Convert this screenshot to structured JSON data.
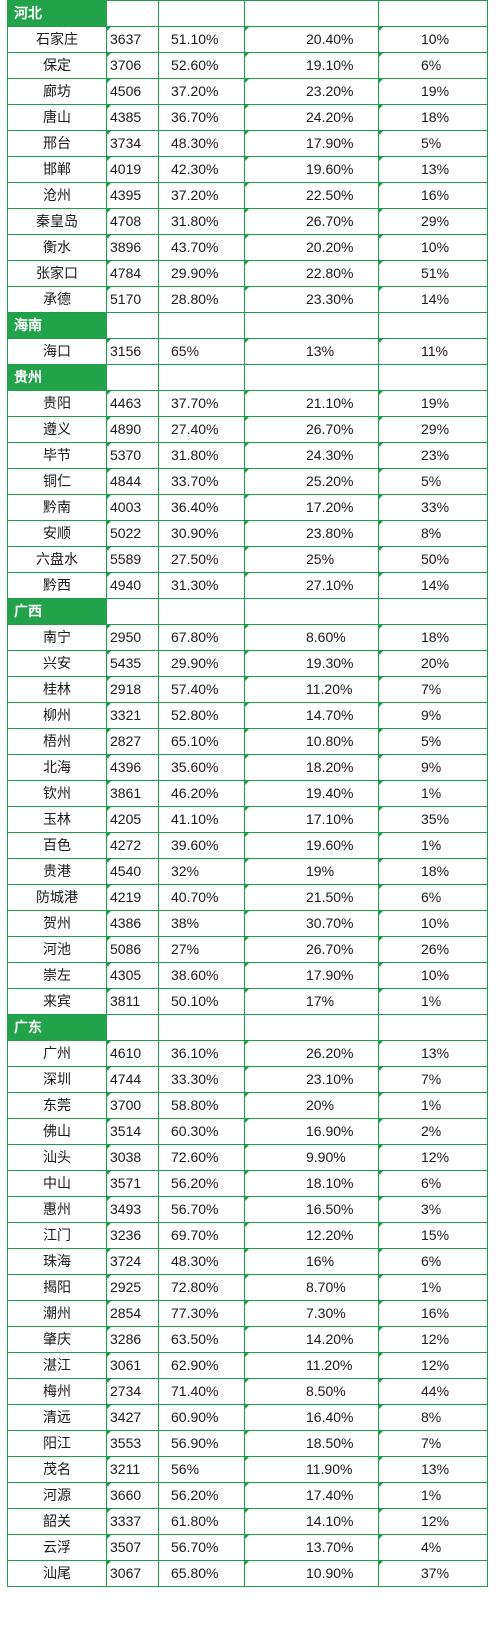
{
  "theme": {
    "accent": "#22a24a",
    "border": "#1e9e4a",
    "header_text": "#ffffff"
  },
  "provinces": [
    {
      "name": "河北",
      "rows": [
        [
          "石家庄",
          "3637",
          "51.10%",
          "20.40%",
          "10%"
        ],
        [
          "保定",
          "3706",
          "52.60%",
          "19.10%",
          "6%"
        ],
        [
          "廊坊",
          "4506",
          "37.20%",
          "23.20%",
          "19%"
        ],
        [
          "唐山",
          "4385",
          "36.70%",
          "24.20%",
          "18%"
        ],
        [
          "邢台",
          "3734",
          "48.30%",
          "17.90%",
          "5%"
        ],
        [
          "邯郸",
          "4019",
          "42.30%",
          "19.60%",
          "13%"
        ],
        [
          "沧州",
          "4395",
          "37.20%",
          "22.50%",
          "16%"
        ],
        [
          "秦皇岛",
          "4708",
          "31.80%",
          "26.70%",
          "29%"
        ],
        [
          "衡水",
          "3896",
          "43.70%",
          "20.20%",
          "10%"
        ],
        [
          "张家口",
          "4784",
          "29.90%",
          "22.80%",
          "51%"
        ],
        [
          "承德",
          "5170",
          "28.80%",
          "23.30%",
          "14%"
        ]
      ]
    },
    {
      "name": "海南",
      "rows": [
        [
          "海口",
          "3156",
          "65%",
          "13%",
          "11%"
        ]
      ]
    },
    {
      "name": "贵州",
      "rows": [
        [
          "贵阳",
          "4463",
          "37.70%",
          "21.10%",
          "19%"
        ],
        [
          "遵义",
          "4890",
          "27.40%",
          "26.70%",
          "29%"
        ],
        [
          "毕节",
          "5370",
          "31.80%",
          "24.30%",
          "23%"
        ],
        [
          "铜仁",
          "4844",
          "33.70%",
          "25.20%",
          "5%"
        ],
        [
          "黔南",
          "4003",
          "36.40%",
          "17.20%",
          "33%"
        ],
        [
          "安顺",
          "5022",
          "30.90%",
          "23.80%",
          "8%"
        ],
        [
          "六盘水",
          "5589",
          "27.50%",
          "25%",
          "50%"
        ],
        [
          "黔西",
          "4940",
          "31.30%",
          "27.10%",
          "14%"
        ]
      ]
    },
    {
      "name": "广西",
      "rows": [
        [
          "南宁",
          "2950",
          "67.80%",
          "8.60%",
          "18%"
        ],
        [
          "兴安",
          "5435",
          "29.90%",
          "19.30%",
          "20%"
        ],
        [
          "桂林",
          "2918",
          "57.40%",
          "11.20%",
          "7%"
        ],
        [
          "柳州",
          "3321",
          "52.80%",
          "14.70%",
          "9%"
        ],
        [
          "梧州",
          "2827",
          "65.10%",
          "10.80%",
          "5%"
        ],
        [
          "北海",
          "4396",
          "35.60%",
          "18.20%",
          "9%"
        ],
        [
          "钦州",
          "3861",
          "46.20%",
          "19.40%",
          "1%"
        ],
        [
          "玉林",
          "4205",
          "41.10%",
          "17.10%",
          "35%"
        ],
        [
          "百色",
          "4272",
          "39.60%",
          "19.60%",
          "1%"
        ],
        [
          "贵港",
          "4540",
          "32%",
          "19%",
          "18%"
        ],
        [
          "防城港",
          "4219",
          "40.70%",
          "21.50%",
          "6%"
        ],
        [
          "贺州",
          "4386",
          "38%",
          "30.70%",
          "10%"
        ],
        [
          "河池",
          "5086",
          "27%",
          "26.70%",
          "26%"
        ],
        [
          "崇左",
          "4305",
          "38.60%",
          "17.90%",
          "10%"
        ],
        [
          "来宾",
          "3811",
          "50.10%",
          "17%",
          "1%"
        ]
      ]
    },
    {
      "name": "广东",
      "rows": [
        [
          "广州",
          "4610",
          "36.10%",
          "26.20%",
          "13%"
        ],
        [
          "深圳",
          "4744",
          "33.30%",
          "23.10%",
          "7%"
        ],
        [
          "东莞",
          "3700",
          "58.80%",
          "20%",
          "1%"
        ],
        [
          "佛山",
          "3514",
          "60.30%",
          "16.90%",
          "2%"
        ],
        [
          "汕头",
          "3038",
          "72.60%",
          "9.90%",
          "12%"
        ],
        [
          "中山",
          "3571",
          "56.20%",
          "18.10%",
          "6%"
        ],
        [
          "惠州",
          "3493",
          "56.70%",
          "16.50%",
          "3%"
        ],
        [
          "江门",
          "3236",
          "69.70%",
          "12.20%",
          "15%"
        ],
        [
          "珠海",
          "3724",
          "48.30%",
          "16%",
          "6%"
        ],
        [
          "揭阳",
          "2925",
          "72.80%",
          "8.70%",
          "1%"
        ],
        [
          "潮州",
          "2854",
          "77.30%",
          "7.30%",
          "16%"
        ],
        [
          "肇庆",
          "3286",
          "63.50%",
          "14.20%",
          "12%"
        ],
        [
          "湛江",
          "3061",
          "62.90%",
          "11.20%",
          "12%"
        ],
        [
          "梅州",
          "2734",
          "71.40%",
          "8.50%",
          "44%"
        ],
        [
          "清远",
          "3427",
          "60.90%",
          "16.40%",
          "8%"
        ],
        [
          "阳江",
          "3553",
          "56.90%",
          "18.50%",
          "7%"
        ],
        [
          "茂名",
          "3211",
          "56%",
          "11.90%",
          "13%"
        ],
        [
          "河源",
          "3660",
          "56.20%",
          "17.40%",
          "1%"
        ],
        [
          "韶关",
          "3337",
          "61.80%",
          "14.10%",
          "12%"
        ],
        [
          "云浮",
          "3507",
          "56.70%",
          "13.70%",
          "4%"
        ],
        [
          "汕尾",
          "3067",
          "65.80%",
          "10.90%",
          "37%"
        ]
      ]
    }
  ]
}
